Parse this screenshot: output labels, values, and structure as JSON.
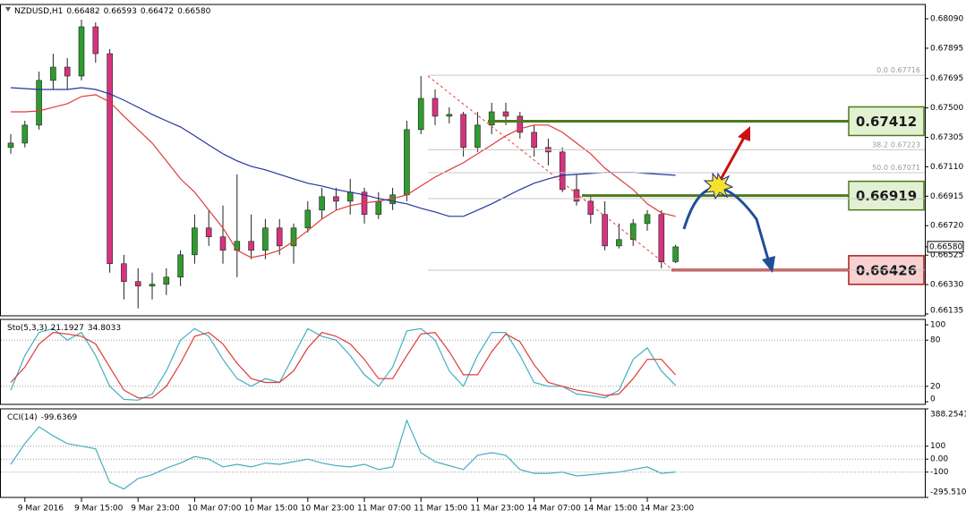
{
  "chart_data": [
    {
      "type": "candlestick",
      "title": "NZDUSD,H1",
      "categories": [
        null,
        "9 Mar 2016",
        null,
        null,
        null,
        "9 Mar 15:00",
        null,
        null,
        null,
        "9 Mar 23:00",
        null,
        null,
        null,
        "10 Mar 07:00",
        null,
        null,
        null,
        "10 Mar 15:00",
        null,
        null,
        null,
        "10 Mar 23:00",
        null,
        null,
        null,
        "11 Mar 07:00",
        null,
        null,
        null,
        "11 Mar 15:00",
        null,
        null,
        null,
        "11 Mar 23:00",
        null,
        null,
        null,
        "14 Mar 07:00",
        null,
        null,
        null,
        "14 Mar 15:00",
        null,
        null,
        null,
        "14 Mar 23:00",
        null,
        null
      ],
      "candles": [
        [
          0.67238,
          0.67326,
          0.67196,
          0.67267
        ],
        [
          0.67267,
          0.67415,
          0.67238,
          0.67386
        ],
        [
          0.67386,
          0.67741,
          0.67356,
          0.67682
        ],
        [
          0.67682,
          0.67859,
          0.67622,
          0.6777
        ],
        [
          0.6777,
          0.6783,
          0.67622,
          0.67711
        ],
        [
          0.67711,
          0.68084,
          0.67682,
          0.68037
        ],
        [
          0.68037,
          0.68066,
          0.678,
          0.67859
        ],
        [
          0.67859,
          0.67889,
          0.66409,
          0.66468
        ],
        [
          0.66468,
          0.66527,
          0.66231,
          0.6635
        ],
        [
          0.6635,
          0.66438,
          0.66172,
          0.6632
        ],
        [
          0.6632,
          0.66409,
          0.66231,
          0.66332
        ],
        [
          0.66332,
          0.66438,
          0.66261,
          0.66379
        ],
        [
          0.66379,
          0.66557,
          0.6632,
          0.66527
        ],
        [
          0.66527,
          0.66794,
          0.66468,
          0.66705
        ],
        [
          0.66705,
          0.66823,
          0.66586,
          0.66646
        ],
        [
          0.66646,
          0.66853,
          0.66468,
          0.66557
        ],
        [
          0.66557,
          0.6706,
          0.66379,
          0.66616
        ],
        [
          0.66616,
          0.66794,
          0.66498,
          0.66557
        ],
        [
          0.66557,
          0.66764,
          0.66498,
          0.66705
        ],
        [
          0.66705,
          0.66764,
          0.66527,
          0.66586
        ],
        [
          0.66586,
          0.66734,
          0.66468,
          0.66705
        ],
        [
          0.66705,
          0.66882,
          0.66675,
          0.66823
        ],
        [
          0.66823,
          0.66971,
          0.66764,
          0.66912
        ],
        [
          0.66912,
          0.66971,
          0.66823,
          0.66882
        ],
        [
          0.66882,
          0.6703,
          0.66794,
          0.66942
        ],
        [
          0.66942,
          0.66971,
          0.66734,
          0.66794
        ],
        [
          0.66794,
          0.66942,
          0.66764,
          0.66882
        ],
        [
          0.66865,
          0.66971,
          0.66823,
          0.66924
        ],
        [
          0.66924,
          0.67415,
          0.66882,
          0.67356
        ],
        [
          0.67356,
          0.67711,
          0.67326,
          0.67563
        ],
        [
          0.67563,
          0.67622,
          0.67386,
          0.67445
        ],
        [
          0.67445,
          0.67504,
          0.67397,
          0.67457
        ],
        [
          0.67457,
          0.67474,
          0.67178,
          0.67238
        ],
        [
          0.67238,
          0.67474,
          0.67208,
          0.67386
        ],
        [
          0.67386,
          0.67534,
          0.67326,
          0.67474
        ],
        [
          0.67474,
          0.67534,
          0.67386,
          0.67445
        ],
        [
          0.67445,
          0.67474,
          0.67297,
          0.67338
        ],
        [
          0.67338,
          0.67386,
          0.67178,
          0.67238
        ],
        [
          0.67238,
          0.67297,
          0.67119,
          0.67208
        ],
        [
          0.67208,
          0.67238,
          0.66942,
          0.66959
        ],
        [
          0.66959,
          0.6706,
          0.66853,
          0.66882
        ],
        [
          0.66882,
          0.66912,
          0.66734,
          0.66794
        ],
        [
          0.66794,
          0.66882,
          0.66557,
          0.66586
        ],
        [
          0.66586,
          0.66734,
          0.66569,
          0.66628
        ],
        [
          0.66628,
          0.66764,
          0.66586,
          0.66734
        ],
        [
          0.66734,
          0.66823,
          0.66687,
          0.66794
        ],
        [
          0.66794,
          0.66823,
          0.66438,
          0.6648
        ],
        [
          0.66482,
          0.66593,
          0.66472,
          0.6658
        ]
      ],
      "bull_color": "#2f9b2f",
      "bear_color": "#d6337f",
      "series": [
        {
          "color": "#e03a3a",
          "values": [
            0.67474,
            0.67474,
            0.6748,
            0.67504,
            0.67528,
            0.67575,
            0.67587,
            0.67539,
            0.67445,
            0.67356,
            0.67267,
            0.67149,
            0.6703,
            0.66942,
            0.66823,
            0.66705,
            0.66557,
            0.66509,
            0.66527,
            0.66557,
            0.66616,
            0.66687,
            0.66764,
            0.66823,
            0.66853,
            0.66871,
            0.66882,
            0.669,
            0.66924,
            0.66983,
            0.67042,
            0.6709,
            0.67137,
            0.67196,
            0.67255,
            0.67315,
            0.67362,
            0.67386,
            0.67386,
            0.67338,
            0.67267,
            0.67196,
            0.67101,
            0.6703,
            0.66959,
            0.66865,
            0.66805,
            0.66782
          ]
        },
        {
          "color": "#2733a0",
          "values": [
            0.67634,
            0.67628,
            0.67622,
            0.67622,
            0.67622,
            0.67634,
            0.67622,
            0.67593,
            0.67551,
            0.67504,
            0.67457,
            0.67415,
            0.67374,
            0.67315,
            0.67255,
            0.67196,
            0.67149,
            0.67113,
            0.6709,
            0.6706,
            0.6703,
            0.67001,
            0.66983,
            0.66959,
            0.66942,
            0.66924,
            0.669,
            0.66882,
            0.66865,
            0.66835,
            0.66811,
            0.66782,
            0.66782,
            0.66823,
            0.66865,
            0.66912,
            0.66959,
            0.67001,
            0.6703,
            0.67054,
            0.6706,
            0.67066,
            0.67072,
            0.67072,
            0.67072,
            0.67066,
            0.6706,
            0.67054
          ]
        }
      ],
      "ylim": [
        0.66123,
        0.68185
      ],
      "yticks": [
        {
          "value": 0.6809,
          "label": "0.68090"
        },
        0.67895,
        0.67695,
        {
          "value": 0.675,
          "label": "0.67500"
        },
        0.67305,
        {
          "value": 0.6711,
          "label": "0.67110"
        },
        0.66915,
        {
          "value": 0.6672,
          "label": "0.66720"
        },
        0.66525,
        {
          "value": 0.6633,
          "label": "0.66330"
        },
        0.66135
      ],
      "current_price": {
        "value": 0.6658,
        "label": "0.66580"
      },
      "fib_levels": [
        {
          "label": "0.0",
          "value": 0.67716
        },
        {
          "label": "38.2",
          "value": 0.67223
        },
        {
          "label": "50.0",
          "value": 0.67071
        }
      ],
      "levels": [
        {
          "value": 0.67412,
          "color": "#4d7a1e",
          "fill": "#e3f1d3"
        },
        {
          "value": 0.66919,
          "color": "#4d7a1e",
          "fill": "#e3f1d3"
        },
        {
          "value": 0.66426,
          "color": "#b01818",
          "fill": "#f8d2d2"
        }
      ]
    },
    {
      "type": "line",
      "title": "Sto(5,3,3)",
      "series": [
        {
          "color": "#45aec0",
          "values": [
            15,
            60,
            90,
            95,
            80,
            90,
            60,
            20,
            3,
            2,
            10,
            40,
            80,
            95,
            85,
            55,
            30,
            20,
            30,
            25,
            60,
            95,
            85,
            80,
            60,
            35,
            20,
            45,
            92,
            95,
            80,
            40,
            20,
            60,
            90,
            90,
            60,
            25,
            20,
            20,
            10,
            8,
            5,
            15,
            55,
            70,
            40,
            21.1927
          ]
        },
        {
          "color": "#e03a3a",
          "values": [
            25,
            45,
            75,
            90,
            88,
            85,
            75,
            45,
            15,
            5,
            5,
            20,
            50,
            85,
            90,
            75,
            50,
            30,
            25,
            25,
            40,
            70,
            90,
            85,
            75,
            55,
            30,
            30,
            60,
            88,
            90,
            65,
            35,
            35,
            65,
            88,
            78,
            48,
            25,
            20,
            15,
            12,
            8,
            10,
            30,
            55,
            55,
            34.8033
          ]
        }
      ],
      "ylim": [
        -3.5,
        107
      ],
      "yticks": [
        0,
        20,
        80,
        100
      ],
      "grid_lines": [
        20,
        80
      ]
    },
    {
      "type": "line",
      "title": "CCI(14)",
      "series": [
        {
          "color": "#45aec0",
          "values": [
            -40,
            120,
            250,
            180,
            120,
            100,
            80,
            -180,
            -230,
            -150,
            -120,
            -70,
            -30,
            20,
            0,
            -60,
            -40,
            -60,
            -30,
            -40,
            -20,
            0,
            -30,
            -50,
            -60,
            -40,
            -80,
            -60,
            300,
            50,
            -20,
            -50,
            -80,
            30,
            50,
            30,
            -80,
            -110,
            -110,
            -100,
            -130,
            -120,
            -110,
            -100,
            -80,
            -60,
            -110,
            -99.6369
          ]
        }
      ],
      "ylim": [
        -295.5104,
        388.2541
      ],
      "yticks": [
        388.2541,
        100,
        {
          "value": 0,
          "label": "0.00"
        },
        -100,
        -295.5104
      ],
      "grid_lines": [
        100,
        0,
        -100
      ]
    }
  ]
}
